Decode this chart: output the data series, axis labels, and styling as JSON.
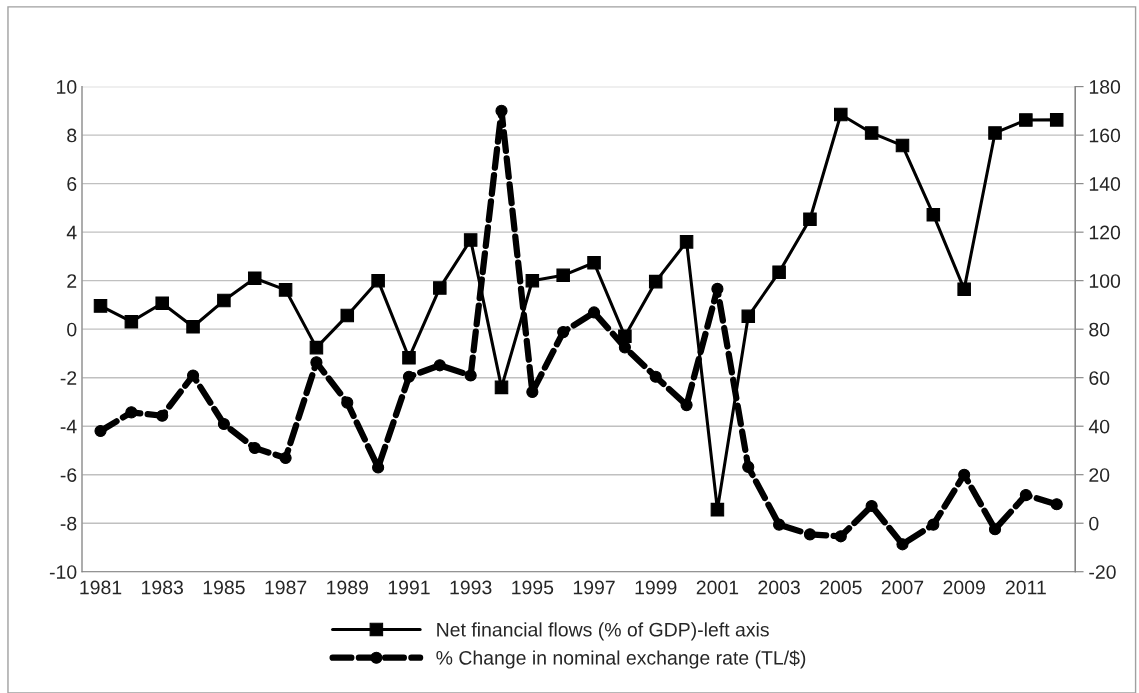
{
  "chart_data": {
    "type": "line",
    "categories": [
      "1981",
      null,
      "1983",
      null,
      "1985",
      null,
      "1987",
      null,
      "1989",
      null,
      "1991",
      null,
      "1993",
      null,
      "1995",
      null,
      "1997",
      null,
      "1999",
      null,
      "2001",
      null,
      "2003",
      null,
      "2005",
      null,
      "2007",
      null,
      "2009",
      null,
      "2011",
      null
    ],
    "series": [
      {
        "name": "Net financial flows (% of GDP)-left axis",
        "color": "#000000",
        "marker": "square",
        "line_style": "solid",
        "axis": "y",
        "values": [
          0.96,
          0.31,
          1.07,
          0.1,
          1.18,
          2.1,
          1.62,
          -0.76,
          0.56,
          2.0,
          -1.18,
          1.7,
          3.68,
          -2.4,
          2.0,
          2.22,
          2.74,
          -0.29,
          1.96,
          3.6,
          -7.44,
          0.53,
          2.35,
          4.53,
          8.85,
          8.09,
          7.57,
          4.72,
          1.65,
          8.09,
          8.62,
          8.63
        ]
      },
      {
        "name": "% Change in nominal exchange rate (TL/$)",
        "color": "#000000",
        "marker": "circle",
        "line_style": "dashed",
        "axis": "y2",
        "values": [
          38,
          45.7,
          44.3,
          60.9,
          40.9,
          31,
          26.9,
          66.3,
          49.7,
          23,
          60.4,
          65.1,
          60.9,
          170,
          54.1,
          78.8,
          86.9,
          72.5,
          60.4,
          48.7,
          96.6,
          23.2,
          -0.6,
          -4.6,
          -5.4,
          7.1,
          -8.7,
          -0.6,
          20,
          -2.5,
          11.6,
          7.8
        ]
      }
    ],
    "ylim": [
      -10,
      10
    ],
    "yticks": [
      -10,
      -8,
      -6,
      -4,
      -2,
      0,
      2,
      4,
      6,
      8,
      10
    ],
    "y2lim": [
      -20,
      180
    ],
    "y2ticks": [
      -20,
      0,
      20,
      40,
      60,
      80,
      100,
      120,
      140,
      160,
      180
    ],
    "grid": "y",
    "legend": "bottom"
  }
}
